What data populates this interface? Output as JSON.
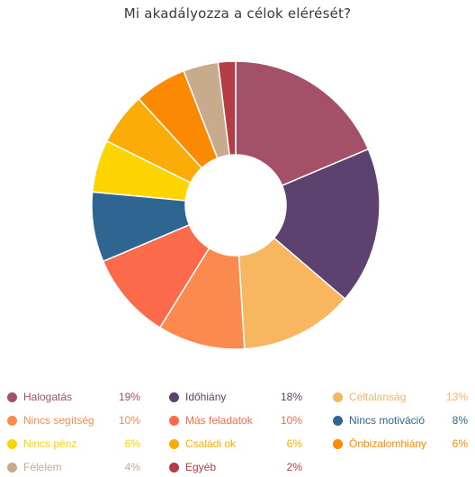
{
  "chart_data": {
    "type": "pie",
    "title": "Mi akadályozza a célok elérését?",
    "slices": [
      {
        "label": "Halogatás",
        "value": 19,
        "display": "19%",
        "color": "#a45068"
      },
      {
        "label": "Időhiány",
        "value": 18,
        "display": "18%",
        "color": "#5d4270"
      },
      {
        "label": "Céltalanság",
        "value": 13,
        "display": "13%",
        "color": "#f8b660"
      },
      {
        "label": "Nincs segítség",
        "value": 10,
        "display": "10%",
        "color": "#fb8a4e"
      },
      {
        "label": "Más feladatok",
        "value": 10,
        "display": "10%",
        "color": "#fb6a4a"
      },
      {
        "label": "Nincs motiváció",
        "value": 8,
        "display": "8%",
        "color": "#2e6591"
      },
      {
        "label": "Nincs pénz",
        "value": 6,
        "display": "6%",
        "color": "#fcd400"
      },
      {
        "label": "Családi ok",
        "value": 6,
        "display": "6%",
        "color": "#fbac08"
      },
      {
        "label": "Önbizalomhiány",
        "value": 6,
        "display": "6%",
        "color": "#fb8a02"
      },
      {
        "label": "Félelem",
        "value": 4,
        "display": "4%",
        "color": "#c8aa8c"
      },
      {
        "label": "Egyéb",
        "value": 2,
        "display": "2%",
        "color": "#b43c44"
      }
    ],
    "legend_position": "bottom",
    "grid": false
  }
}
